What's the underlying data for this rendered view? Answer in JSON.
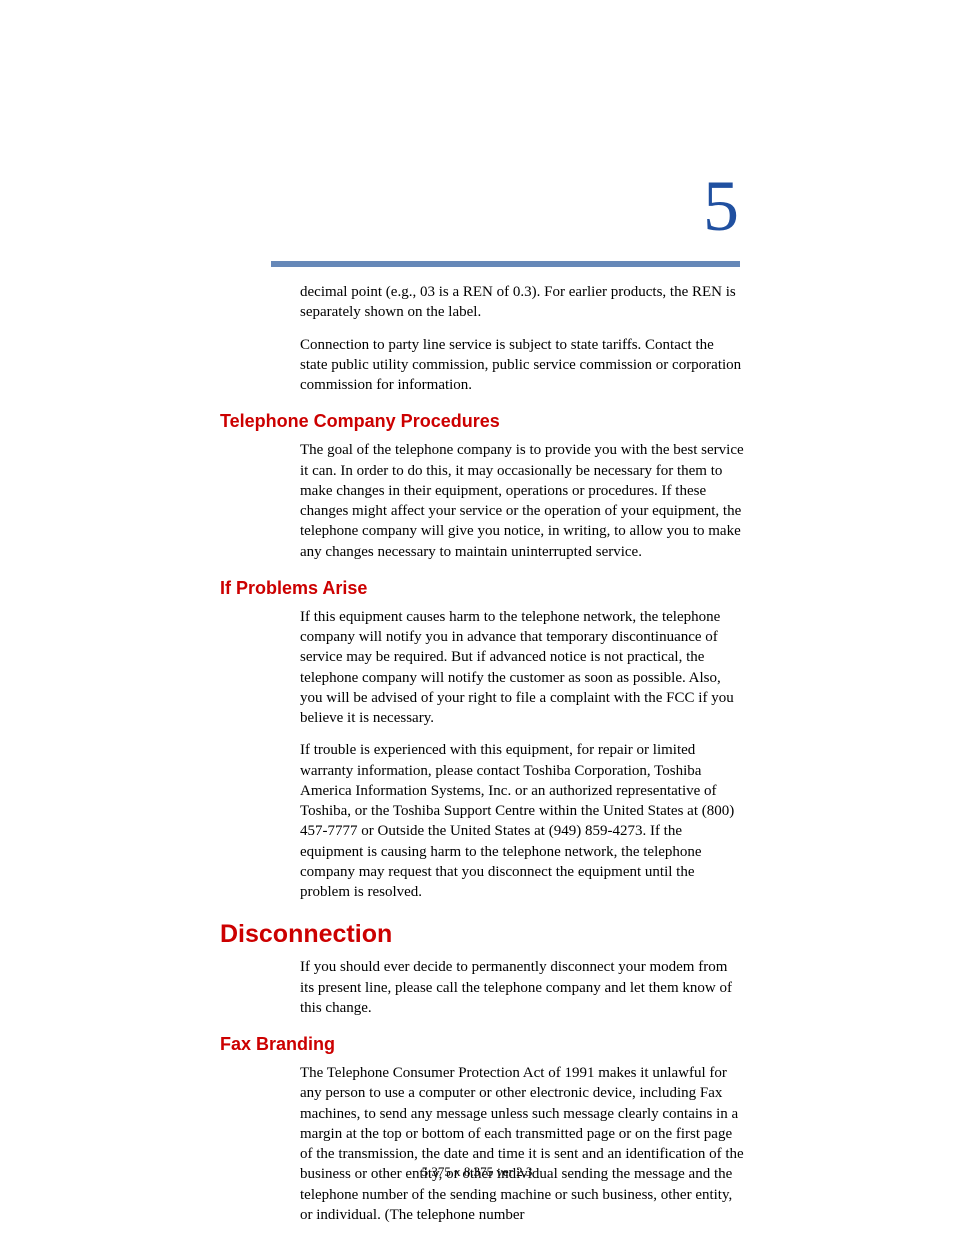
{
  "chapter": {
    "number": "5"
  },
  "intro": {
    "paragraph1": "decimal point (e.g., 03 is a REN of 0.3). For earlier products, the REN is separately shown on the label.",
    "paragraph2": "Connection to party line service is subject to state tariffs. Contact the state public utility commission, public service commission or corporation commission for information."
  },
  "sections": [
    {
      "heading": "Telephone Company Procedures",
      "level": "minor",
      "paragraphs": [
        "The goal of the telephone company is to provide you with the best service it can. In order to do this, it may occasionally be necessary for them to make changes in their equipment, operations or procedures. If these changes might affect your service or the operation of your equipment, the telephone company will give you notice, in writing, to allow you to make any changes necessary to maintain uninterrupted service."
      ]
    },
    {
      "heading": "If Problems Arise",
      "level": "minor",
      "paragraphs": [
        "If this equipment causes harm to the telephone network, the telephone company will notify you in advance that temporary discontinuance of service may be required. But if advanced notice is not practical, the telephone company will notify the customer as soon as possible. Also, you will be advised of your right to file a complaint with the FCC if you believe it is necessary.",
        "If trouble is experienced with this equipment, for repair or limited warranty information, please contact Toshiba Corporation, Toshiba America Information Systems, Inc. or an authorized representative of Toshiba, or the Toshiba Support Centre within the United States at (800) 457-7777 or Outside the United States at (949) 859-4273. If the equipment is causing harm to the telephone network, the telephone company may request that you disconnect the equipment until the problem is resolved."
      ]
    },
    {
      "heading": "Disconnection",
      "level": "major",
      "paragraphs": [
        "If you should ever decide to permanently disconnect your modem from its present line, please call the telephone company and let them know of this change."
      ]
    },
    {
      "heading": "Fax Branding",
      "level": "minor",
      "paragraphs": [
        "The Telephone Consumer Protection Act of 1991 makes it unlawful for any person to use a computer or other electronic device, including Fax machines, to send any message unless such message clearly contains in a margin at the top or bottom of each transmitted page or on the first page of the transmission, the date and time it is sent and an identification of the business or other entity, or other individual sending the message and the telephone number of the sending machine or such business, other entity, or individual. (The telephone number"
      ]
    }
  ],
  "footer": {
    "text": "5.375 x 8.375 ver 2.3"
  },
  "colors": {
    "heading": "#cc0000",
    "chapter_number": "#2050a0",
    "divider": "#6688b8",
    "body_text": "#000000",
    "background": "#ffffff"
  },
  "typography": {
    "body_fontsize": 15,
    "heading_minor_fontsize": 18,
    "heading_major_fontsize": 25,
    "chapter_number_fontsize": 72,
    "footer_fontsize": 13
  }
}
